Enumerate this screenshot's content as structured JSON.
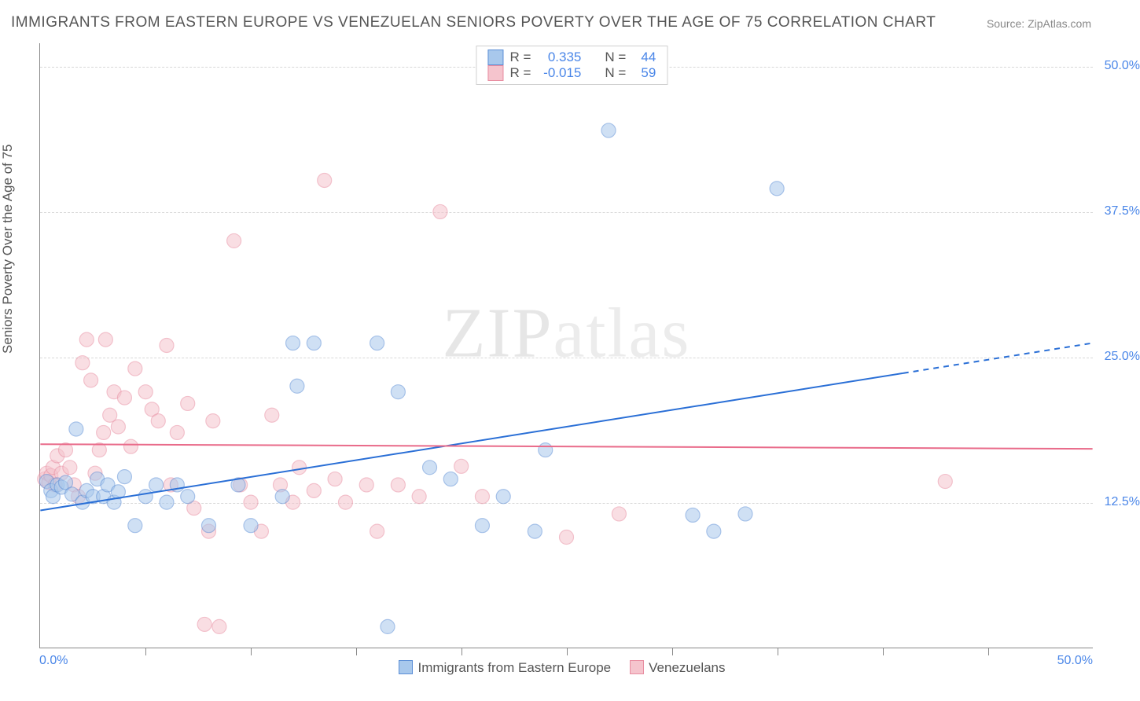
{
  "title": "IMMIGRANTS FROM EASTERN EUROPE VS VENEZUELAN SENIORS POVERTY OVER THE AGE OF 75 CORRELATION CHART",
  "source": "Source: ZipAtlas.com",
  "ylabel": "Seniors Poverty Over the Age of 75",
  "watermark_a": "ZIP",
  "watermark_b": "atlas",
  "chart": {
    "type": "scatter",
    "background_color": "#ffffff",
    "grid_color": "#d8d8d8",
    "axis_color": "#888888",
    "xlim": [
      0,
      50
    ],
    "ylim": [
      0,
      52
    ],
    "xtick_positions": [
      5,
      10,
      15,
      20,
      25,
      30,
      35,
      40,
      45
    ],
    "yticks": [
      {
        "v": 12.5,
        "label": "12.5%"
      },
      {
        "v": 25.0,
        "label": "25.0%"
      },
      {
        "v": 37.5,
        "label": "37.5%"
      },
      {
        "v": 50.0,
        "label": "50.0%"
      }
    ],
    "xtick_labels": {
      "min": "0.0%",
      "max": "50.0%"
    },
    "tick_label_color": "#4a86e8",
    "tick_label_fontsize": 16,
    "label_fontsize": 17,
    "title_fontsize": 19,
    "marker_radius": 9,
    "marker_opacity": 0.55,
    "series": [
      {
        "name": "Immigrants from Eastern Europe",
        "fill": "#a8c8ec",
        "stroke": "#5b8ed6",
        "r_value": "0.335",
        "n_value": "44",
        "trend": {
          "x1": 0,
          "y1": 11.8,
          "x2": 50,
          "y2": 26.2,
          "solid_end_x": 41,
          "color": "#2a6fd6",
          "width": 2
        },
        "points": [
          [
            0.3,
            14.3
          ],
          [
            0.5,
            13.5
          ],
          [
            0.6,
            13.0
          ],
          [
            0.8,
            14.0
          ],
          [
            1.0,
            13.8
          ],
          [
            1.2,
            14.2
          ],
          [
            1.5,
            13.2
          ],
          [
            1.7,
            18.8
          ],
          [
            2.0,
            12.5
          ],
          [
            2.2,
            13.5
          ],
          [
            2.5,
            13.0
          ],
          [
            2.7,
            14.5
          ],
          [
            3.0,
            13.0
          ],
          [
            3.2,
            14.0
          ],
          [
            3.5,
            12.5
          ],
          [
            3.7,
            13.4
          ],
          [
            4.0,
            14.7
          ],
          [
            4.5,
            10.5
          ],
          [
            5.0,
            13.0
          ],
          [
            5.5,
            14.0
          ],
          [
            6.0,
            12.5
          ],
          [
            6.5,
            14.0
          ],
          [
            7.0,
            13.0
          ],
          [
            8.0,
            10.5
          ],
          [
            9.4,
            14.0
          ],
          [
            10.0,
            10.5
          ],
          [
            11.5,
            13.0
          ],
          [
            12.0,
            26.2
          ],
          [
            12.2,
            22.5
          ],
          [
            13.0,
            26.2
          ],
          [
            16.0,
            26.2
          ],
          [
            16.5,
            1.8
          ],
          [
            17.0,
            22.0
          ],
          [
            18.5,
            15.5
          ],
          [
            19.5,
            14.5
          ],
          [
            21.0,
            10.5
          ],
          [
            22.0,
            13.0
          ],
          [
            23.5,
            10.0
          ],
          [
            24.0,
            17.0
          ],
          [
            27.0,
            44.5
          ],
          [
            31.0,
            11.4
          ],
          [
            32.0,
            10.0
          ],
          [
            33.5,
            11.5
          ],
          [
            35.0,
            39.5
          ]
        ]
      },
      {
        "name": "Venezuelans",
        "fill": "#f5c4cd",
        "stroke": "#e88ca0",
        "r_value": "-0.015",
        "n_value": "59",
        "trend": {
          "x1": 0,
          "y1": 17.5,
          "x2": 50,
          "y2": 17.1,
          "color": "#e96b8a",
          "width": 2
        },
        "points": [
          [
            0.2,
            14.5
          ],
          [
            0.3,
            15.0
          ],
          [
            0.4,
            14.2
          ],
          [
            0.5,
            14.8
          ],
          [
            0.6,
            15.5
          ],
          [
            0.7,
            14.0
          ],
          [
            0.8,
            16.5
          ],
          [
            1.0,
            15.0
          ],
          [
            1.2,
            17.0
          ],
          [
            1.4,
            15.5
          ],
          [
            1.6,
            14.0
          ],
          [
            1.8,
            13.0
          ],
          [
            2.0,
            24.5
          ],
          [
            2.2,
            26.5
          ],
          [
            2.4,
            23.0
          ],
          [
            2.6,
            15.0
          ],
          [
            2.8,
            17.0
          ],
          [
            3.0,
            18.5
          ],
          [
            3.1,
            26.5
          ],
          [
            3.3,
            20.0
          ],
          [
            3.5,
            22.0
          ],
          [
            3.7,
            19.0
          ],
          [
            4.0,
            21.5
          ],
          [
            4.3,
            17.3
          ],
          [
            4.5,
            24.0
          ],
          [
            5.0,
            22.0
          ],
          [
            5.3,
            20.5
          ],
          [
            5.6,
            19.5
          ],
          [
            6.0,
            26.0
          ],
          [
            6.2,
            14.0
          ],
          [
            6.5,
            18.5
          ],
          [
            7.0,
            21.0
          ],
          [
            7.3,
            12.0
          ],
          [
            7.8,
            2.0
          ],
          [
            8.0,
            10.0
          ],
          [
            8.2,
            19.5
          ],
          [
            8.5,
            1.8
          ],
          [
            9.2,
            35.0
          ],
          [
            9.5,
            14.0
          ],
          [
            10.0,
            12.5
          ],
          [
            10.5,
            10.0
          ],
          [
            11.0,
            20.0
          ],
          [
            11.4,
            14.0
          ],
          [
            12.0,
            12.5
          ],
          [
            12.3,
            15.5
          ],
          [
            13.0,
            13.5
          ],
          [
            13.5,
            40.2
          ],
          [
            14.0,
            14.5
          ],
          [
            14.5,
            12.5
          ],
          [
            15.5,
            14.0
          ],
          [
            16.0,
            10.0
          ],
          [
            17.0,
            14.0
          ],
          [
            18.0,
            13.0
          ],
          [
            19.0,
            37.5
          ],
          [
            20.0,
            15.6
          ],
          [
            21.0,
            13.0
          ],
          [
            25.0,
            9.5
          ],
          [
            27.5,
            11.5
          ],
          [
            43.0,
            14.3
          ]
        ]
      }
    ],
    "bottom_legend": [
      {
        "label": "Immigrants from Eastern Europe",
        "fill": "#a8c8ec",
        "stroke": "#5b8ed6"
      },
      {
        "label": "Venezuelans",
        "fill": "#f5c4cd",
        "stroke": "#e88ca0"
      }
    ]
  }
}
